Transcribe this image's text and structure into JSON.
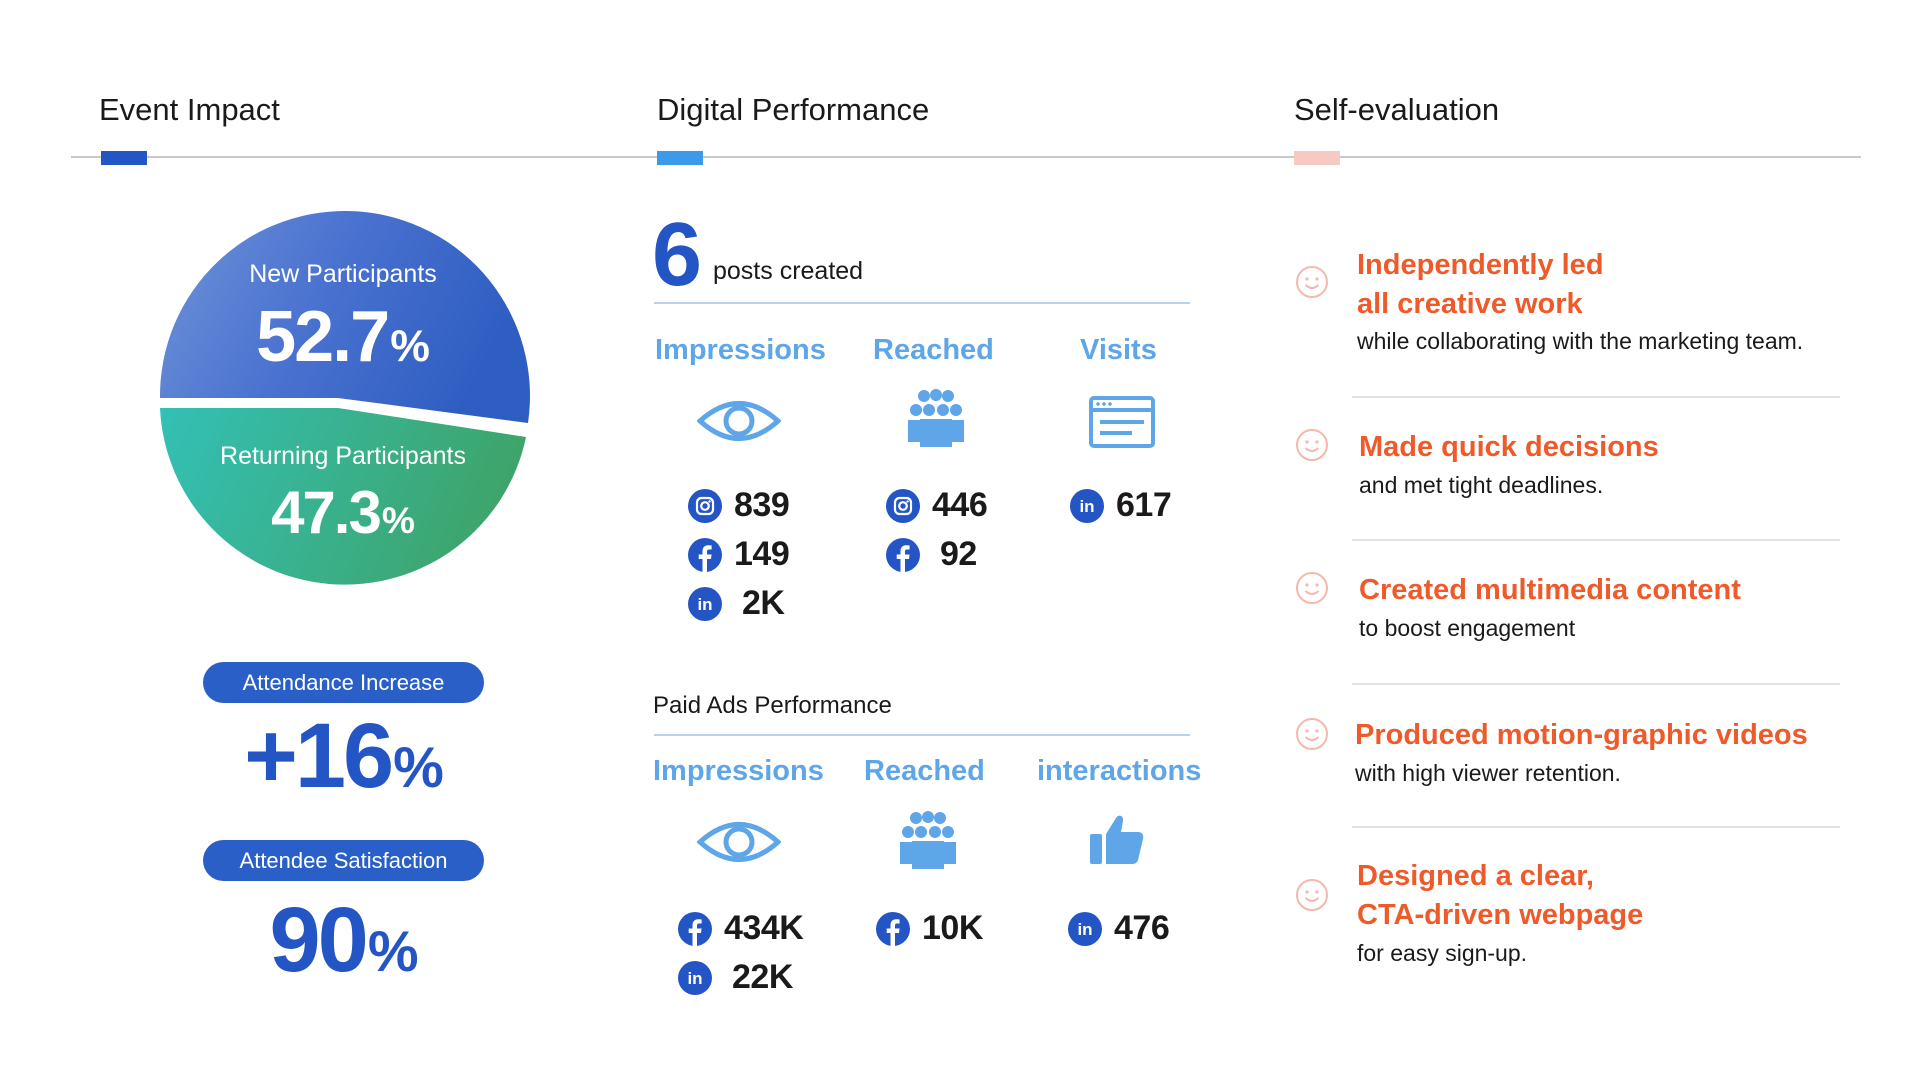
{
  "columns": {
    "event_impact": "Event Impact",
    "digital_performance": "Digital Performance",
    "self_evaluation": "Self-evaluation"
  },
  "colors": {
    "accent_blue": "#2355c4",
    "light_blue": "#5ea6e8",
    "marker_pink": "#f7c9c3",
    "orange": "#ef5a2b",
    "green": "#2fb89a"
  },
  "pie": {
    "new": {
      "label": "New Participants",
      "value": "52.7",
      "unit": "%",
      "share": 52.7
    },
    "returning": {
      "label": "Returning Participants",
      "value": "47.3",
      "unit": "%",
      "share": 47.3
    }
  },
  "stats": {
    "attendance": {
      "label": "Attendance Increase",
      "value": "+16",
      "unit": "%"
    },
    "satisfaction": {
      "label": "Attendee Satisfaction",
      "value": "90",
      "unit": "%"
    }
  },
  "digital": {
    "posts_count": "6",
    "posts_label": "posts created",
    "organic": {
      "impressions": {
        "label": "Impressions",
        "icon": "eye-icon",
        "values": [
          {
            "icon": "instagram-icon",
            "value": "839"
          },
          {
            "icon": "facebook-icon",
            "value": "149"
          },
          {
            "icon": "linkedin-icon",
            "value": "2K"
          }
        ]
      },
      "reached": {
        "label": "Reached",
        "icon": "people-group-icon",
        "values": [
          {
            "icon": "instagram-icon",
            "value": "446"
          },
          {
            "icon": "facebook-icon",
            "value": "92"
          }
        ]
      },
      "visits": {
        "label": "Visits",
        "icon": "browser-window-icon",
        "values": [
          {
            "icon": "linkedin-icon",
            "value": "617"
          }
        ]
      }
    },
    "paid_title": "Paid Ads Performance",
    "paid": {
      "impressions": {
        "label": "Impressions",
        "icon": "eye-icon",
        "values": [
          {
            "icon": "facebook-icon",
            "value": "434K"
          },
          {
            "icon": "linkedin-icon",
            "value": "22K"
          }
        ]
      },
      "reached": {
        "label": "Reached",
        "icon": "people-group-icon",
        "values": [
          {
            "icon": "facebook-icon",
            "value": "10K"
          }
        ]
      },
      "interactions": {
        "label": "interactions",
        "icon": "thumbs-up-icon",
        "values": [
          {
            "icon": "linkedin-icon",
            "value": "476"
          }
        ]
      }
    }
  },
  "self_eval": [
    {
      "icon": "smiley-icon",
      "title_lines": [
        "Independently led",
        "all creative work"
      ],
      "sub": "while collaborating with the marketing team."
    },
    {
      "icon": "smiley-icon",
      "title_lines": [
        "Made quick decisions"
      ],
      "sub": "and met tight deadlines."
    },
    {
      "icon": "smiley-icon",
      "title_lines": [
        "Created multimedia content"
      ],
      "sub": "to boost engagement"
    },
    {
      "icon": "smiley-icon",
      "title_lines": [
        "Produced motion-graphic videos"
      ],
      "sub": "with high viewer retention."
    },
    {
      "icon": "smiley-icon",
      "title_lines": [
        "Designed a clear,",
        "CTA-driven webpage"
      ],
      "sub": "for easy sign-up."
    }
  ]
}
